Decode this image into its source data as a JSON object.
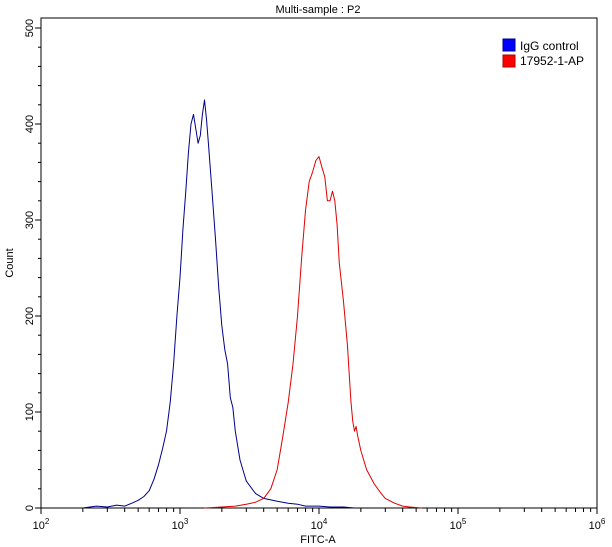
{
  "chart_data": {
    "type": "line",
    "subtype": "flow-cytometry-histogram-overlay",
    "title": "Multi-sample : P2",
    "xlabel": "FITC-A",
    "ylabel": "Count",
    "xscale": "log",
    "xlim": [
      100,
      1000000
    ],
    "ylim": [
      0,
      500
    ],
    "x_ticks": [
      {
        "value": 100,
        "base": "10",
        "exp": "2"
      },
      {
        "value": 1000,
        "base": "10",
        "exp": "3"
      },
      {
        "value": 10000,
        "base": "10",
        "exp": "4"
      },
      {
        "value": 100000,
        "base": "10",
        "exp": "5"
      },
      {
        "value": 1000000,
        "base": "10",
        "exp": "6"
      }
    ],
    "y_ticks": [
      "0",
      "100",
      "200",
      "300",
      "400",
      "500"
    ],
    "grid": false,
    "legend_position": "top-right",
    "series": [
      {
        "name": "IgG control",
        "color": "#0000ff",
        "line_color": "#00008b",
        "peak_x": 1500,
        "peak_count": 425,
        "points": [
          [
            200,
            0
          ],
          [
            250,
            2
          ],
          [
            300,
            1
          ],
          [
            350,
            3
          ],
          [
            400,
            2
          ],
          [
            450,
            5
          ],
          [
            500,
            8
          ],
          [
            550,
            12
          ],
          [
            600,
            18
          ],
          [
            650,
            30
          ],
          [
            700,
            45
          ],
          [
            750,
            62
          ],
          [
            800,
            80
          ],
          [
            850,
            110
          ],
          [
            900,
            150
          ],
          [
            950,
            200
          ],
          [
            1000,
            240
          ],
          [
            1050,
            290
          ],
          [
            1100,
            330
          ],
          [
            1150,
            370
          ],
          [
            1200,
            400
          ],
          [
            1250,
            410
          ],
          [
            1300,
            395
          ],
          [
            1350,
            380
          ],
          [
            1400,
            388
          ],
          [
            1450,
            410
          ],
          [
            1500,
            425
          ],
          [
            1550,
            405
          ],
          [
            1600,
            380
          ],
          [
            1700,
            330
          ],
          [
            1800,
            280
          ],
          [
            1900,
            230
          ],
          [
            2000,
            190
          ],
          [
            2100,
            165
          ],
          [
            2200,
            150
          ],
          [
            2300,
            115
          ],
          [
            2400,
            105
          ],
          [
            2500,
            80
          ],
          [
            2700,
            50
          ],
          [
            3000,
            28
          ],
          [
            3500,
            15
          ],
          [
            4000,
            10
          ],
          [
            5000,
            7
          ],
          [
            6000,
            5
          ],
          [
            7000,
            4
          ],
          [
            8000,
            2
          ],
          [
            10000,
            2
          ],
          [
            12000,
            1
          ],
          [
            15000,
            1
          ],
          [
            18000,
            0
          ]
        ]
      },
      {
        "name": "17952-1-AP",
        "color": "#ff0000",
        "line_color": "#e00000",
        "peak_x": 10000,
        "peak_count": 366,
        "points": [
          [
            1500,
            0
          ],
          [
            2000,
            1
          ],
          [
            2500,
            2
          ],
          [
            3000,
            4
          ],
          [
            3500,
            6
          ],
          [
            4000,
            10
          ],
          [
            4500,
            20
          ],
          [
            5000,
            40
          ],
          [
            5500,
            75
          ],
          [
            6000,
            110
          ],
          [
            6500,
            150
          ],
          [
            7000,
            200
          ],
          [
            7500,
            260
          ],
          [
            8000,
            310
          ],
          [
            8500,
            340
          ],
          [
            9000,
            350
          ],
          [
            9500,
            362
          ],
          [
            10000,
            366
          ],
          [
            10500,
            355
          ],
          [
            11000,
            345
          ],
          [
            11500,
            320
          ],
          [
            12000,
            320
          ],
          [
            12500,
            330
          ],
          [
            13000,
            320
          ],
          [
            13500,
            295
          ],
          [
            14000,
            255
          ],
          [
            15000,
            215
          ],
          [
            16000,
            170
          ],
          [
            17000,
            110
          ],
          [
            17500,
            90
          ],
          [
            18000,
            80
          ],
          [
            18500,
            85
          ],
          [
            19000,
            75
          ],
          [
            20000,
            60
          ],
          [
            22000,
            40
          ],
          [
            25000,
            25
          ],
          [
            28000,
            15
          ],
          [
            30000,
            10
          ],
          [
            35000,
            5
          ],
          [
            40000,
            2
          ],
          [
            45000,
            1
          ],
          [
            55000,
            0
          ]
        ]
      }
    ]
  }
}
